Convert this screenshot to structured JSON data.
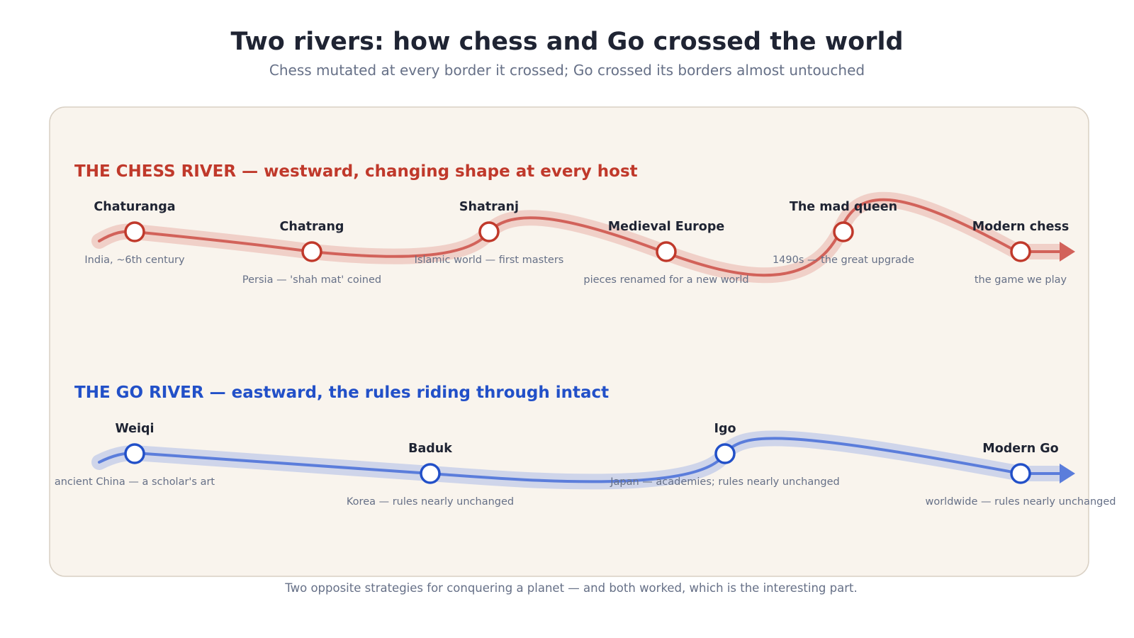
{
  "header": {
    "title": "Two rivers: how chess and Go crossed the world",
    "subtitle": "Chess mutated at every border it crossed; Go crossed its borders almost untouched"
  },
  "chess": {
    "heading": "THE CHESS RIVER — westward, changing shape at every host",
    "color": "#c0392b",
    "line_color": "#d2625a",
    "band_color": "#f0d0c8",
    "stages": [
      {
        "name": "Chaturanga",
        "note": "India, ~6th century"
      },
      {
        "name": "Chatrang",
        "note": "Persia — 'shah mat' coined"
      },
      {
        "name": "Shatranj",
        "note": "Islamic world — first masters"
      },
      {
        "name": "Medieval Europe",
        "note": "pieces renamed for a new world"
      },
      {
        "name": "The mad queen",
        "note": "1490s — the great upgrade"
      },
      {
        "name": "Modern chess",
        "note": "the game we play"
      }
    ]
  },
  "go": {
    "heading": "THE GO RIVER — eastward, the rules riding through intact",
    "color": "#2250c8",
    "line_color": "#5b7ddb",
    "band_color": "#cfd5ea",
    "stages": [
      {
        "name": "Weiqi",
        "note": "ancient China — a scholar's art"
      },
      {
        "name": "Baduk",
        "note": "Korea — rules nearly unchanged"
      },
      {
        "name": "Igo",
        "note": "Japan — academies; rules nearly unchanged"
      },
      {
        "name": "Modern Go",
        "note": "worldwide — rules nearly unchanged"
      }
    ]
  },
  "footer": "Two opposite strategies for conquering a planet — and both worked, which is the interesting part."
}
